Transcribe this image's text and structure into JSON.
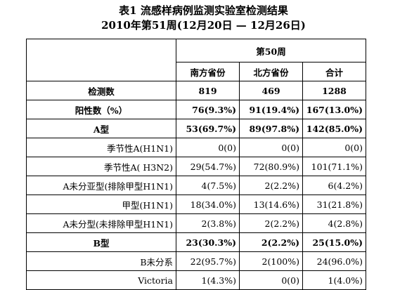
{
  "title": "表1 流感样病例监测实验室检测结果",
  "subtitle": "2010年第51周(12月20日 — 12月26日)",
  "header": {
    "week": "第50周",
    "columns": [
      "南方省份",
      "北方省份",
      "合计"
    ]
  },
  "rows": [
    {
      "label": "检测数",
      "values": [
        "819",
        "469",
        "1288"
      ]
    },
    {
      "label": "阳性数（%）",
      "values": [
        "76(9.3%)",
        "91(19.4%)",
        "167(13.0%)"
      ]
    },
    {
      "label": "A型",
      "values": [
        "53(69.7%)",
        "89(97.8%)",
        "142(85.0%)"
      ]
    },
    {
      "label": "季节性A(H1N1)",
      "values": [
        "0(0)",
        "0(0)",
        "0(0)"
      ]
    },
    {
      "label": "季节性A( H3N2)",
      "values": [
        "29(54.7%)",
        "72(80.9%)",
        "101(71.1%)"
      ]
    },
    {
      "label": "A未分亚型(排除甲型H1N1)",
      "values": [
        "4(7.5%)",
        "2(2.2%)",
        "6(4.2%)"
      ]
    },
    {
      "label": "甲型(H1N1)",
      "values": [
        "18(34.0%)",
        "13(14.6%)",
        "31(21.8%)"
      ]
    },
    {
      "label": "A未分型(未排除甲型H1N1)",
      "values": [
        "2(3.8%)",
        "2(2.2%)",
        "4(2.8%)"
      ]
    },
    {
      "label": "B型",
      "values": [
        "23(30.3%)",
        "2(2.2%)",
        "25(15.0%)"
      ]
    },
    {
      "label": "B未分系",
      "values": [
        "22(95.7%)",
        "2(100%)",
        "24(96.0%)"
      ]
    },
    {
      "label": "Victoria",
      "values": [
        "1(4.3%)",
        "0(0)",
        "1(4.0%)"
      ]
    }
  ]
}
